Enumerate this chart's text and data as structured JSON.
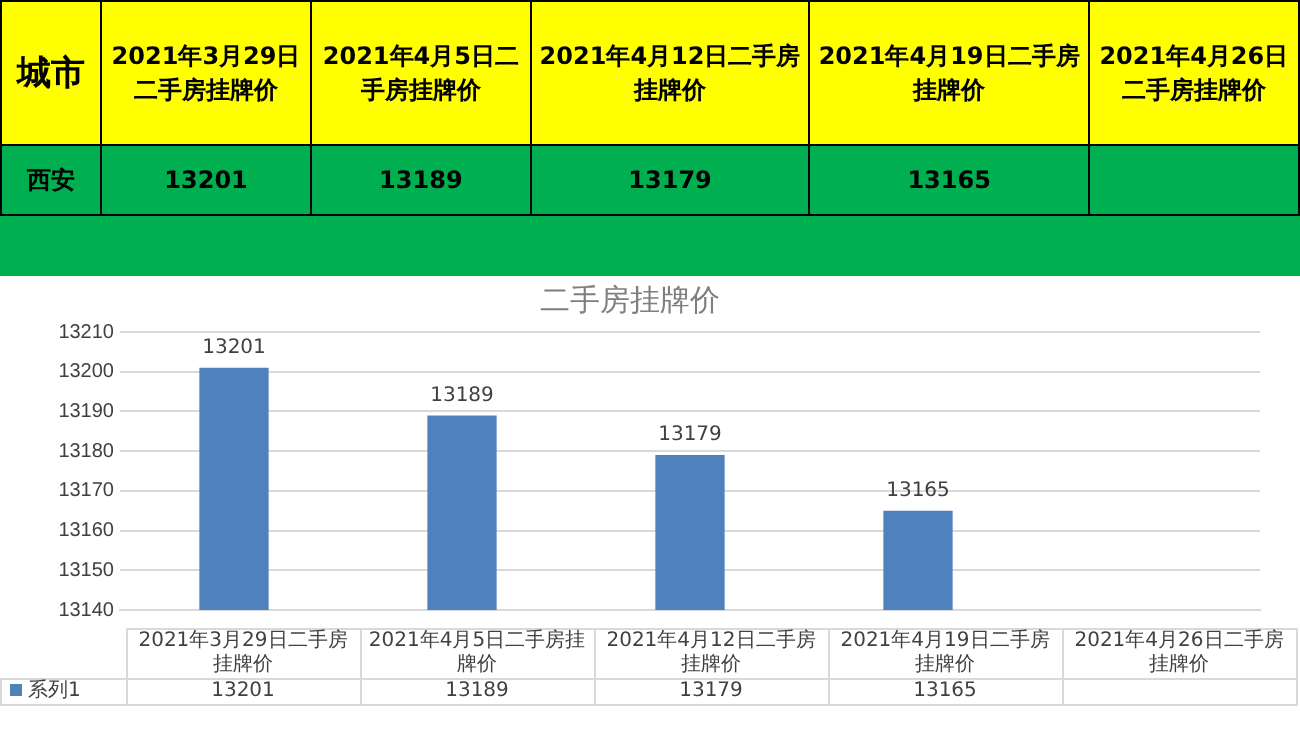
{
  "chart_data": {
    "type": "bar",
    "title": "二手房挂牌价",
    "categories": [
      "2021年3月29日二手房挂牌价",
      "2021年4月5日二手房挂牌价",
      "2021年4月12日二手房挂牌价",
      "2021年4月19日二手房挂牌价",
      "2021年4月26日二手房挂牌价"
    ],
    "series": [
      {
        "name": "系列1",
        "color": "#4f81bd",
        "values": [
          13201,
          13189,
          13179,
          13165,
          null
        ],
        "value_labels": [
          "13201",
          "13189",
          "13179",
          "13165",
          null
        ]
      }
    ],
    "ylim": [
      13140,
      13210
    ],
    "yticks": [
      13140,
      13150,
      13160,
      13170,
      13180,
      13190,
      13200,
      13210
    ],
    "grid": "y",
    "legend": "bottom",
    "annotations": [
      "城市",
      "西安"
    ]
  }
}
